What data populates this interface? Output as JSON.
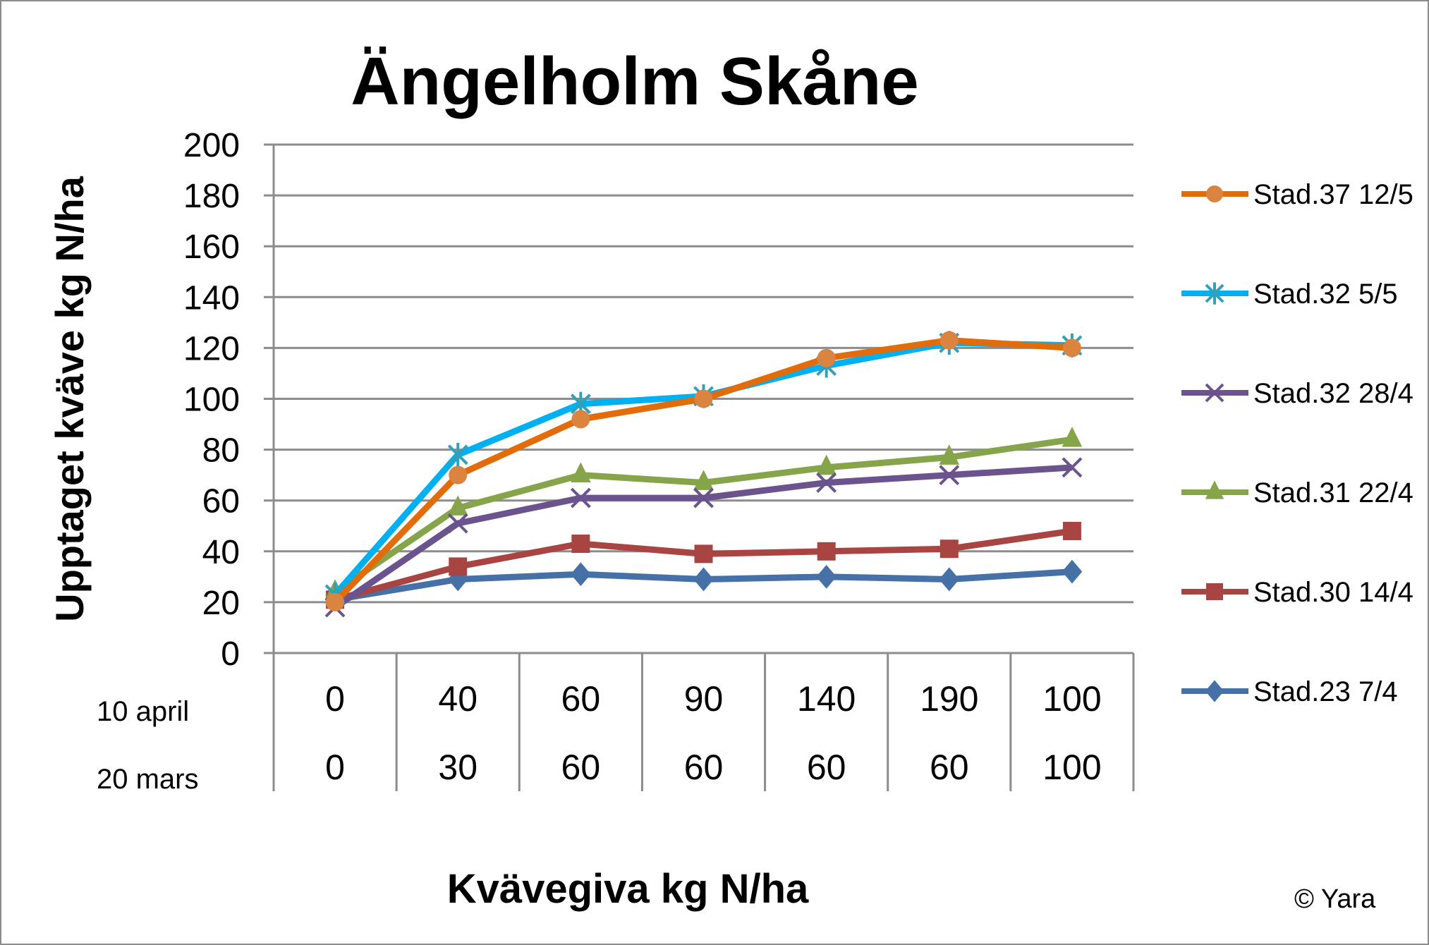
{
  "chart_data": {
    "type": "line",
    "title": "Ängelholm Skåne",
    "ylabel": "Upptaget kväve kg N/ha",
    "xlabel": "Kvävegiva kg N/ha",
    "ylim": [
      0,
      200
    ],
    "yticks": [
      0,
      20,
      40,
      60,
      80,
      100,
      120,
      140,
      160,
      180,
      200
    ],
    "grid": true,
    "legend_position": "right",
    "category_rows": [
      {
        "label": "10 april",
        "values": [
          "0",
          "40",
          "60",
          "90",
          "140",
          "190",
          "100"
        ]
      },
      {
        "label": "20 mars",
        "values": [
          "0",
          "30",
          "60",
          "60",
          "60",
          "60",
          "100"
        ]
      }
    ],
    "series": [
      {
        "name": "Stad.37 12/5",
        "color": "#E36C0A",
        "marker": "circle",
        "marker_color": "#DA8440",
        "values": [
          20,
          70,
          92,
          100,
          116,
          123,
          120
        ]
      },
      {
        "name": "Stad.32 5/5",
        "color": "#00B0F0",
        "marker": "asterisk",
        "marker_color": "#31A0B8",
        "values": [
          23,
          78,
          98,
          101,
          113,
          122,
          121
        ]
      },
      {
        "name": "Stad.32 28/4",
        "color": "#6B548E",
        "marker": "x",
        "marker_color": "#6B548E",
        "values": [
          18,
          51,
          61,
          61,
          67,
          70,
          73
        ]
      },
      {
        "name": "Stad.31 22/4",
        "color": "#86A54A",
        "marker": "triangle",
        "marker_color": "#86A54A",
        "values": [
          24,
          57,
          70,
          67,
          73,
          77,
          84
        ]
      },
      {
        "name": "Stad.30 14/4",
        "color": "#A84442",
        "marker": "square",
        "marker_color": "#A84442",
        "values": [
          21,
          34,
          43,
          39,
          40,
          41,
          48
        ]
      },
      {
        "name": "Stad.23 7/4",
        "color": "#4571A7",
        "marker": "diamond",
        "marker_color": "#4571A7",
        "values": [
          21,
          29,
          31,
          29,
          30,
          29,
          32
        ]
      }
    ]
  },
  "copyright": "© Yara"
}
